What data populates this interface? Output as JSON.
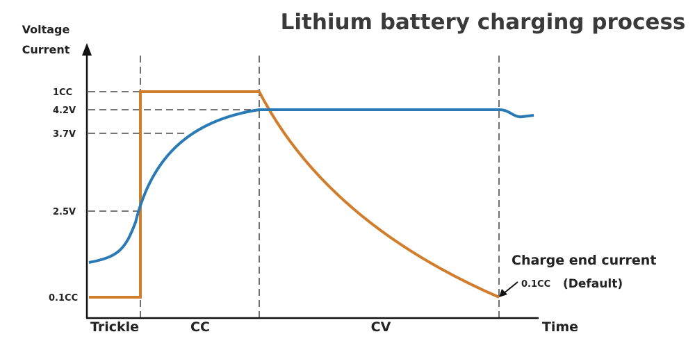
{
  "title": "Lithium battery charging process",
  "axis": {
    "y_label_lines": [
      "Voltage",
      "Current"
    ],
    "x_label": "Time"
  },
  "levels": [
    "1CC",
    "4.2V",
    "3.7V",
    "2.5V",
    "0.1CC"
  ],
  "phases": [
    "Trickle",
    "CC",
    "CV"
  ],
  "annotation": {
    "title": "Charge end current",
    "value": "0.1CC",
    "note": "(Default)"
  }
}
